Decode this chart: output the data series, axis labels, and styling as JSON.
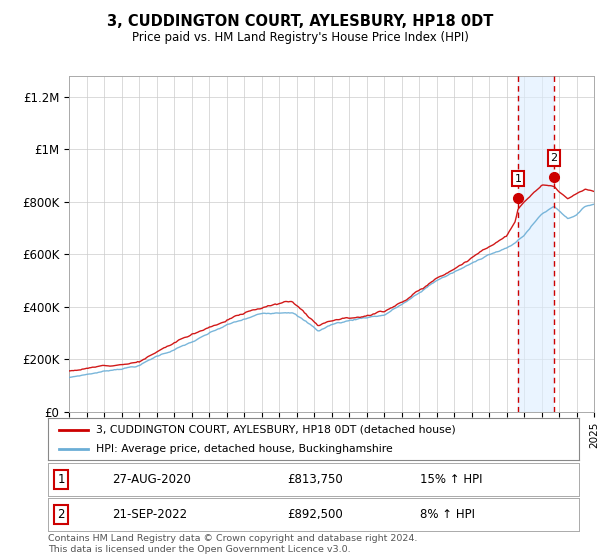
{
  "title": "3, CUDDINGTON COURT, AYLESBURY, HP18 0DT",
  "subtitle": "Price paid vs. HM Land Registry's House Price Index (HPI)",
  "ylabel_ticks": [
    "£0",
    "£200K",
    "£400K",
    "£600K",
    "£800K",
    "£1M",
    "£1.2M"
  ],
  "ytick_values": [
    0,
    200000,
    400000,
    600000,
    800000,
    1000000,
    1200000
  ],
  "ylim": [
    0,
    1280000
  ],
  "x_start_year": 1995,
  "x_end_year": 2025,
  "sale1_x": 2020.65,
  "sale1_price": 813750,
  "sale1_date": "27-AUG-2020",
  "sale1_pct": "15% ↑ HPI",
  "sale2_x": 2022.72,
  "sale2_price": 892500,
  "sale2_date": "21-SEP-2022",
  "sale2_pct": "8% ↑ HPI",
  "legend_line1": "3, CUDDINGTON COURT, AYLESBURY, HP18 0DT (detached house)",
  "legend_line2": "HPI: Average price, detached house, Buckinghamshire",
  "footer": "Contains HM Land Registry data © Crown copyright and database right 2024.\nThis data is licensed under the Open Government Licence v3.0.",
  "hpi_color": "#6baed6",
  "price_color": "#cc0000",
  "shade_color": "#ddeeff",
  "grid_color": "#cccccc",
  "bg_color": "#ffffff"
}
